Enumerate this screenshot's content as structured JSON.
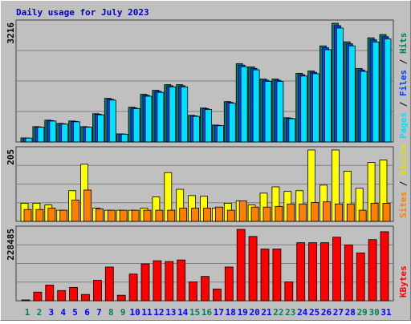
{
  "chart_data": [
    {
      "type": "bar",
      "title": "Daily usage for July 2023",
      "ylim": [
        0,
        3216
      ],
      "legend_separator": " / ",
      "series": [
        {
          "name": "Pages",
          "color": "#00e0ff",
          "values": [
            105,
            400,
            567,
            483,
            546,
            400,
            735,
            1134,
            210,
            903,
            1239,
            1344,
            1491,
            1491,
            693,
            882,
            441,
            1050,
            2037,
            1954,
            1638,
            1638,
            630,
            1786,
            1848,
            2499,
            3087,
            2604,
            1911,
            2709,
            2794
          ]
        },
        {
          "name": "Files",
          "color": "#0040ff",
          "values": [
            107,
            408,
            579,
            493,
            558,
            408,
            751,
            1157,
            215,
            922,
            1265,
            1372,
            1522,
            1522,
            708,
            901,
            450,
            1072,
            2080,
            1994,
            1672,
            1672,
            643,
            1823,
            1887,
            2551,
            3152,
            2659,
            1951,
            2766,
            2852
          ]
        },
        {
          "name": "Hits",
          "color": "#00805c",
          "values": [
            109,
            416,
            591,
            503,
            569,
            416,
            766,
            1181,
            219,
            941,
            1291,
            1400,
            1553,
            1553,
            722,
            919,
            459,
            1094,
            2122,
            2035,
            1706,
            1706,
            656,
            1860,
            1925,
            2603,
            3216,
            2713,
            1991,
            2822,
            2910
          ]
        }
      ]
    },
    {
      "type": "bar",
      "ylim": [
        0,
        205
      ],
      "legend_separator": " / ",
      "series": [
        {
          "name": "Sites",
          "color": "#ff8000",
          "values": [
            34,
            34,
            38,
            32,
            61,
            90,
            36,
            32,
            32,
            32,
            32,
            32,
            32,
            38,
            38,
            38,
            41,
            32,
            59,
            41,
            41,
            43,
            50,
            50,
            54,
            56,
            50,
            50,
            32,
            52,
            52
          ]
        },
        {
          "name": "Visits",
          "color": "#ffff00",
          "values": [
            52,
            52,
            47,
            32,
            88,
            164,
            38,
            32,
            32,
            32,
            38,
            70,
            140,
            92,
            74,
            72,
            38,
            52,
            59,
            47,
            81,
            99,
            86,
            88,
            205,
            104,
            205,
            144,
            95,
            169,
            176
          ]
        }
      ]
    },
    {
      "type": "bar",
      "ylim": [
        0,
        228485
      ],
      "series": [
        {
          "name": "KBytes",
          "color": "#ff0000",
          "values": [
            2511,
            27621,
            50220,
            32643,
            42687,
            20088,
            65286,
            107973,
            17577,
            85374,
            118017,
            128061,
            125550,
            130572,
            60264,
            77841,
            37665,
            107973,
            228485,
            205902,
            165726,
            165726,
            60264,
            185814,
            185814,
            185814,
            203391,
            178281,
            153171,
            195858,
            220968
          ]
        }
      ],
      "categories": [
        1,
        2,
        3,
        4,
        5,
        6,
        7,
        8,
        9,
        10,
        11,
        12,
        13,
        14,
        15,
        16,
        17,
        18,
        19,
        20,
        21,
        22,
        23,
        24,
        25,
        26,
        27,
        28,
        29,
        30,
        31
      ],
      "weekend_indices": [
        0,
        1,
        7,
        8,
        14,
        15,
        21,
        22,
        28,
        29
      ],
      "weekday_color": "#0000ff",
      "weekend_color": "#00805c"
    }
  ]
}
